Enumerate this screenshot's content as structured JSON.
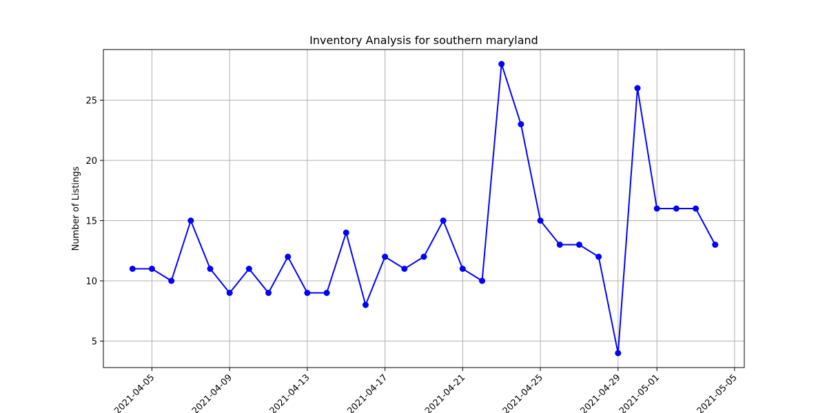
{
  "chart_data": {
    "type": "line",
    "title": "Inventory Analysis for southern maryland",
    "xlabel": "",
    "ylabel": "Number of Listings",
    "x": [
      "2021-04-04",
      "2021-04-05",
      "2021-04-06",
      "2021-04-07",
      "2021-04-08",
      "2021-04-09",
      "2021-04-10",
      "2021-04-11",
      "2021-04-12",
      "2021-04-13",
      "2021-04-14",
      "2021-04-15",
      "2021-04-16",
      "2021-04-17",
      "2021-04-18",
      "2021-04-19",
      "2021-04-20",
      "2021-04-21",
      "2021-04-22",
      "2021-04-23",
      "2021-04-24",
      "2021-04-25",
      "2021-04-26",
      "2021-04-27",
      "2021-04-28",
      "2021-04-29",
      "2021-04-30",
      "2021-05-01",
      "2021-05-02",
      "2021-05-03",
      "2021-05-04"
    ],
    "series": [
      {
        "values": [
          11,
          11,
          10,
          15,
          11,
          9,
          11,
          9,
          12,
          9,
          9,
          14,
          8,
          12,
          11,
          12,
          15,
          11,
          10,
          28,
          23,
          15,
          13,
          13,
          12,
          4,
          26,
          16,
          16,
          16,
          13
        ]
      }
    ],
    "xlim": [
      "2021-04-02T12:00",
      "2021-05-05T12:00"
    ],
    "ylim": [
      2.8,
      29.2
    ],
    "x_ticks": [
      "2021-04-05",
      "2021-04-09",
      "2021-04-13",
      "2021-04-17",
      "2021-04-21",
      "2021-04-25",
      "2021-04-29",
      "2021-05-01",
      "2021-05-05"
    ],
    "y_ticks": [
      5,
      10,
      15,
      20,
      25
    ],
    "grid": true,
    "line_color": "#0000ff",
    "marker_color": "#0000ff"
  }
}
